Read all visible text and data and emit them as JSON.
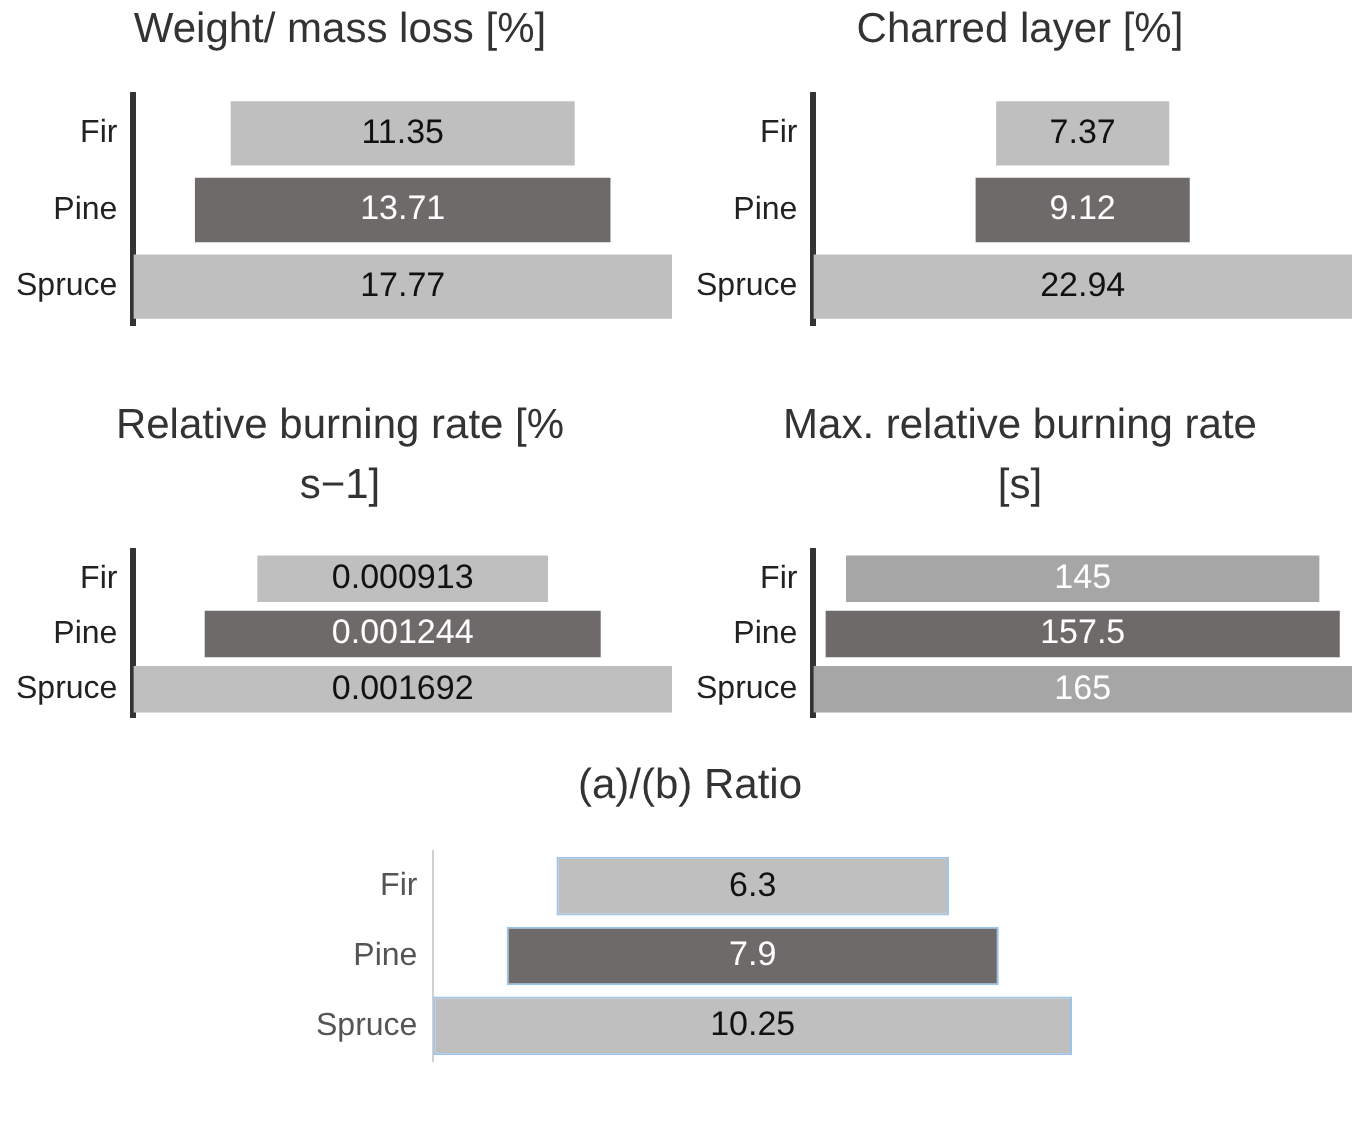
{
  "chart_data": [
    {
      "type": "other",
      "title": "Weight/ mass loss [%]",
      "categories": [
        "Fir",
        "Pine",
        "Spruce"
      ],
      "values": [
        11.35,
        13.71,
        17.77
      ],
      "colors": [
        "#bfbfbf",
        "#6e6a6a",
        "#bfbfbf"
      ],
      "data_labels": true
    },
    {
      "type": "other",
      "title": "Charred layer [%]",
      "categories": [
        "Fir",
        "Pine",
        "Spruce"
      ],
      "values": [
        7.37,
        9.12,
        22.94
      ],
      "colors": [
        "#bfbfbf",
        "#6e6a6a",
        "#bfbfbf"
      ],
      "data_labels": true
    },
    {
      "type": "other",
      "title": "Relative burning rate [% s−1]",
      "categories": [
        "Fir",
        "Pine",
        "Spruce"
      ],
      "values": [
        0.000913,
        0.001244,
        0.001692
      ],
      "colors": [
        "#bfbfbf",
        "#6e6a6a",
        "#bfbfbf"
      ],
      "data_labels": true
    },
    {
      "type": "other",
      "title": "Max. relative burning rate [s]",
      "categories": [
        "Fir",
        "Pine",
        "Spruce"
      ],
      "values": [
        145,
        157.5,
        165
      ],
      "colors": [
        "#a6a6a6",
        "#6e6a6a",
        "#a6a6a6"
      ],
      "data_labels": true
    },
    {
      "type": "other",
      "title": "(a)/(b) Ratio",
      "categories": [
        "Fir",
        "Pine",
        "Spruce"
      ],
      "values": [
        6.3,
        7.9,
        10.25
      ],
      "colors": [
        "#bfbfbf",
        "#6e6a6a",
        "#bfbfbf"
      ],
      "data_labels": true
    }
  ]
}
